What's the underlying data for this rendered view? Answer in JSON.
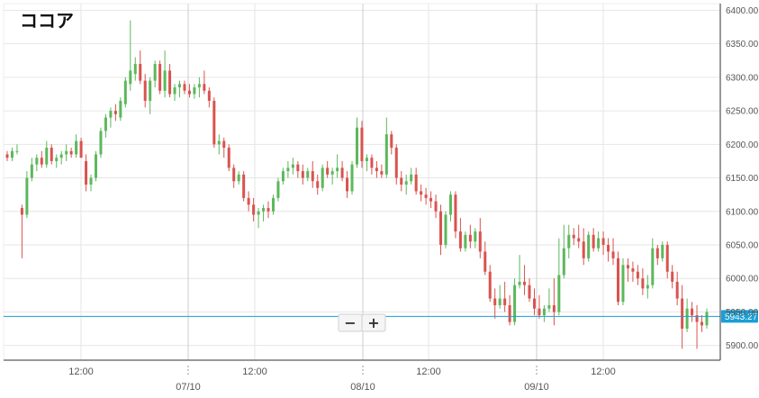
{
  "chart_data": {
    "type": "candlestick",
    "title": "ココア",
    "y_ticks": [
      5900,
      5950,
      6000,
      6050,
      6100,
      6150,
      6200,
      6250,
      6300,
      6350,
      6400
    ],
    "y_tick_labels": [
      "5900.00",
      "5950.00",
      "6000.00",
      "6050.00",
      "6100.00",
      "6150.00",
      "6200.00",
      "6250.00",
      "6300.00",
      "6350.00",
      "6400.00"
    ],
    "ylim": [
      5878,
      6410
    ],
    "x_tick_labels": [
      "12:00",
      "07/10",
      "12:00",
      "08/10",
      "12:00",
      "09/10",
      "12:00"
    ],
    "current_price": 5943.27,
    "current_price_label": "5943.27",
    "zoom_out_label": "−",
    "zoom_in_label": "+",
    "colors": {
      "up": "#5cb85c",
      "down": "#d9534f",
      "price_line": "#1a9fd6",
      "grid": "#e6e6e6",
      "session_line": "#cccccc"
    },
    "candles": [
      [
        6185,
        6190,
        6175,
        6180
      ],
      [
        6180,
        6195,
        6175,
        6190
      ],
      [
        6190,
        6200,
        6185,
        6190
      ],
      [
        6105,
        6110,
        6030,
        6095
      ],
      [
        6095,
        6160,
        6090,
        6150
      ],
      [
        6150,
        6180,
        6145,
        6170
      ],
      [
        6170,
        6185,
        6160,
        6180
      ],
      [
        6180,
        6190,
        6165,
        6170
      ],
      [
        6170,
        6205,
        6165,
        6195
      ],
      [
        6195,
        6200,
        6170,
        6175
      ],
      [
        6175,
        6185,
        6165,
        6180
      ],
      [
        6180,
        6190,
        6170,
        6185
      ],
      [
        6185,
        6200,
        6175,
        6190
      ],
      [
        6190,
        6195,
        6180,
        6185
      ],
      [
        6185,
        6215,
        6180,
        6205
      ],
      [
        6205,
        6210,
        6180,
        6180
      ],
      [
        6175,
        6185,
        6130,
        6140
      ],
      [
        6140,
        6155,
        6130,
        6150
      ],
      [
        6150,
        6190,
        6145,
        6185
      ],
      [
        6185,
        6225,
        6180,
        6220
      ],
      [
        6220,
        6245,
        6210,
        6240
      ],
      [
        6240,
        6255,
        6225,
        6250
      ],
      [
        6250,
        6260,
        6235,
        6245
      ],
      [
        6240,
        6270,
        6235,
        6265
      ],
      [
        6260,
        6300,
        6255,
        6295
      ],
      [
        6290,
        6385,
        6280,
        6310
      ],
      [
        6305,
        6330,
        6295,
        6320
      ],
      [
        6320,
        6340,
        6290,
        6295
      ],
      [
        6295,
        6305,
        6255,
        6265
      ],
      [
        6265,
        6300,
        6245,
        6295
      ],
      [
        6295,
        6325,
        6285,
        6320
      ],
      [
        6320,
        6325,
        6275,
        6280
      ],
      [
        6280,
        6340,
        6270,
        6310
      ],
      [
        6310,
        6320,
        6270,
        6275
      ],
      [
        6275,
        6290,
        6265,
        6285
      ],
      [
        6285,
        6295,
        6270,
        6290
      ],
      [
        6290,
        6295,
        6275,
        6280
      ],
      [
        6280,
        6290,
        6270,
        6275
      ],
      [
        6275,
        6290,
        6268,
        6285
      ],
      [
        6285,
        6300,
        6270,
        6290
      ],
      [
        6290,
        6310,
        6275,
        6280
      ],
      [
        6280,
        6285,
        6255,
        6265
      ],
      [
        6265,
        6270,
        6195,
        6200
      ],
      [
        6200,
        6215,
        6185,
        6205
      ],
      [
        6205,
        6210,
        6180,
        6195
      ],
      [
        6195,
        6200,
        6160,
        6165
      ],
      [
        6165,
        6170,
        6135,
        6145
      ],
      [
        6145,
        6160,
        6140,
        6155
      ],
      [
        6155,
        6160,
        6115,
        6120
      ],
      [
        6120,
        6130,
        6100,
        6110
      ],
      [
        6110,
        6120,
        6085,
        6095
      ],
      [
        6095,
        6105,
        6075,
        6100
      ],
      [
        6100,
        6110,
        6085,
        6105
      ],
      [
        6105,
        6115,
        6090,
        6100
      ],
      [
        6100,
        6125,
        6095,
        6120
      ],
      [
        6120,
        6150,
        6115,
        6145
      ],
      [
        6145,
        6165,
        6140,
        6160
      ],
      [
        6160,
        6175,
        6150,
        6165
      ],
      [
        6165,
        6180,
        6155,
        6170
      ],
      [
        6170,
        6175,
        6150,
        6160
      ],
      [
        6160,
        6170,
        6140,
        6150
      ],
      [
        6150,
        6165,
        6145,
        6160
      ],
      [
        6160,
        6175,
        6135,
        6145
      ],
      [
        6145,
        6155,
        6125,
        6135
      ],
      [
        6135,
        6170,
        6130,
        6165
      ],
      [
        6165,
        6175,
        6150,
        6155
      ],
      [
        6155,
        6165,
        6140,
        6160
      ],
      [
        6160,
        6185,
        6150,
        6165
      ],
      [
        6165,
        6175,
        6145,
        6150
      ],
      [
        6150,
        6160,
        6120,
        6130
      ],
      [
        6130,
        6175,
        6125,
        6170
      ],
      [
        6170,
        6240,
        6165,
        6225
      ],
      [
        6225,
        6235,
        6165,
        6175
      ],
      [
        6175,
        6185,
        6160,
        6180
      ],
      [
        6180,
        6185,
        6155,
        6165
      ],
      [
        6165,
        6175,
        6150,
        6160
      ],
      [
        6160,
        6170,
        6150,
        6155
      ],
      [
        6155,
        6240,
        6150,
        6215
      ],
      [
        6215,
        6220,
        6185,
        6195
      ],
      [
        6195,
        6200,
        6140,
        6150
      ],
      [
        6150,
        6160,
        6130,
        6140
      ],
      [
        6140,
        6155,
        6125,
        6145
      ],
      [
        6145,
        6165,
        6140,
        6155
      ],
      [
        6155,
        6165,
        6125,
        6130
      ],
      [
        6130,
        6140,
        6115,
        6125
      ],
      [
        6125,
        6135,
        6110,
        6120
      ],
      [
        6120,
        6130,
        6105,
        6115
      ],
      [
        6115,
        6125,
        6090,
        6100
      ],
      [
        6100,
        6110,
        6035,
        6050
      ],
      [
        6050,
        6100,
        6045,
        6095
      ],
      [
        6095,
        6130,
        6085,
        6125
      ],
      [
        6125,
        6130,
        6060,
        6070
      ],
      [
        6070,
        6090,
        6040,
        6045
      ],
      [
        6045,
        6070,
        6040,
        6065
      ],
      [
        6065,
        6080,
        6045,
        6055
      ],
      [
        6055,
        6075,
        6045,
        6070
      ],
      [
        6070,
        6090,
        6030,
        6040
      ],
      [
        6040,
        6055,
        6005,
        6010
      ],
      [
        6010,
        6020,
        5965,
        5970
      ],
      [
        5970,
        5985,
        5940,
        5960
      ],
      [
        5960,
        5990,
        5955,
        5970
      ],
      [
        5970,
        5995,
        5950,
        5960
      ],
      [
        5960,
        5975,
        5930,
        5935
      ],
      [
        5935,
        6000,
        5930,
        5990
      ],
      [
        5990,
        6035,
        5985,
        5995
      ],
      [
        5995,
        6020,
        5975,
        5990
      ],
      [
        5990,
        6000,
        5965,
        5970
      ],
      [
        5970,
        5985,
        5945,
        5955
      ],
      [
        5955,
        5975,
        5940,
        5945
      ],
      [
        5945,
        5960,
        5935,
        5955
      ],
      [
        5955,
        5985,
        5950,
        5960
      ],
      [
        5960,
        6000,
        5930,
        5950
      ],
      [
        5950,
        6060,
        5945,
        6005
      ],
      [
        6005,
        6080,
        6000,
        6045
      ],
      [
        6045,
        6080,
        6030,
        6065
      ],
      [
        6065,
        6075,
        6050,
        6060
      ],
      [
        6060,
        6080,
        6045,
        6055
      ],
      [
        6055,
        6075,
        6020,
        6030
      ],
      [
        6030,
        6070,
        6025,
        6065
      ],
      [
        6065,
        6075,
        6040,
        6045
      ],
      [
        6045,
        6070,
        6040,
        6060
      ],
      [
        6060,
        6070,
        6035,
        6050
      ],
      [
        6050,
        6060,
        6025,
        6040
      ],
      [
        6040,
        6060,
        6020,
        6030
      ],
      [
        6030,
        6040,
        5960,
        5965
      ],
      [
        5965,
        6030,
        5960,
        6020
      ],
      [
        6020,
        6030,
        5995,
        6015
      ],
      [
        6015,
        6025,
        5995,
        6010
      ],
      [
        6010,
        6020,
        5990,
        6000
      ],
      [
        6000,
        6015,
        5975,
        5985
      ],
      [
        5985,
        6005,
        5970,
        5990
      ],
      [
        5990,
        6060,
        5985,
        6045
      ],
      [
        6045,
        6050,
        6020,
        6030
      ],
      [
        6030,
        6055,
        6025,
        6050
      ],
      [
        6050,
        6055,
        6000,
        6010
      ],
      [
        6010,
        6020,
        5985,
        5995
      ],
      [
        5995,
        6010,
        5960,
        5970
      ],
      [
        5970,
        5990,
        5895,
        5925
      ],
      [
        5925,
        5970,
        5920,
        5955
      ],
      [
        5955,
        5965,
        5935,
        5945
      ],
      [
        5945,
        5960,
        5895,
        5935
      ],
      [
        5935,
        5945,
        5920,
        5930
      ],
      [
        5930,
        5955,
        5925,
        5950
      ]
    ]
  }
}
